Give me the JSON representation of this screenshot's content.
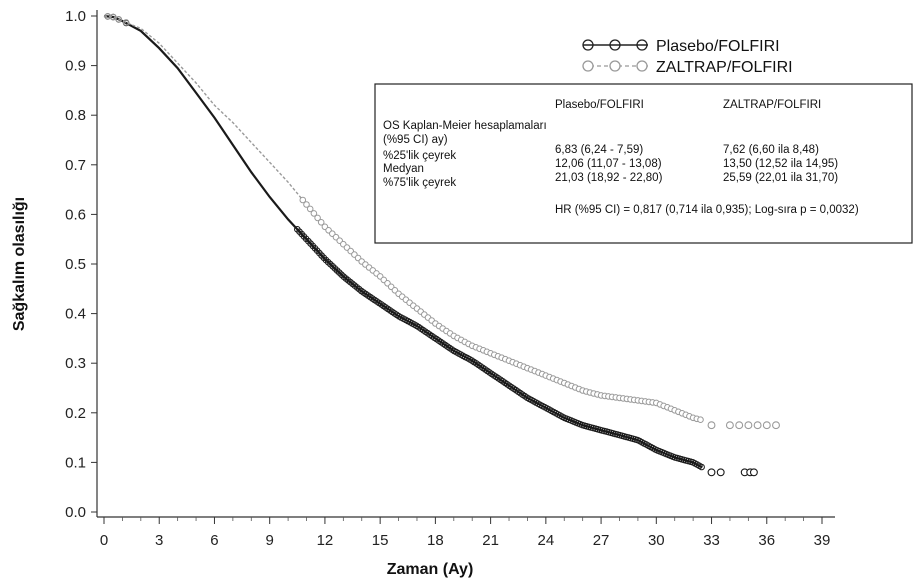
{
  "chart_data": {
    "type": "line",
    "title": "",
    "xlabel": "Zaman (Ay)",
    "ylabel": "Sağkalım olasılığı",
    "xlim": [
      0,
      39
    ],
    "ylim": [
      0,
      1.0
    ],
    "x_ticks": [
      0,
      3,
      6,
      9,
      12,
      15,
      18,
      21,
      24,
      27,
      30,
      33,
      36,
      39
    ],
    "y_ticks": [
      0.0,
      0.1,
      0.2,
      0.3,
      0.4,
      0.5,
      0.6,
      0.7,
      0.8,
      0.9,
      1.0
    ],
    "x_tick_labels": [
      "0",
      "3",
      "6",
      "9",
      "12",
      "15",
      "18",
      "21",
      "24",
      "27",
      "30",
      "33",
      "36",
      "39"
    ],
    "y_tick_labels": [
      "0.0",
      "0.1",
      "0.2",
      "0.3",
      "0.4",
      "0.5",
      "0.6",
      "0.7",
      "0.8",
      "0.9",
      "1.0"
    ],
    "grid": false,
    "legend_position": "top-right",
    "series": [
      {
        "name": "Plasebo/FOLFIRI",
        "color": "#1a1a1a",
        "style": "solid",
        "x": [
          0,
          0.5,
          1,
          2,
          3,
          4,
          5,
          6,
          7,
          8,
          9,
          10,
          11,
          12,
          13,
          14,
          15,
          16,
          17,
          18,
          19,
          20,
          21,
          22,
          23,
          24,
          25,
          26,
          27,
          28,
          29,
          30,
          31,
          32,
          32.5
        ],
        "y": [
          1.0,
          0.998,
          0.99,
          0.97,
          0.935,
          0.895,
          0.845,
          0.795,
          0.74,
          0.685,
          0.635,
          0.59,
          0.55,
          0.51,
          0.475,
          0.445,
          0.42,
          0.395,
          0.375,
          0.35,
          0.325,
          0.305,
          0.28,
          0.255,
          0.23,
          0.21,
          0.19,
          0.175,
          0.165,
          0.155,
          0.145,
          0.125,
          0.11,
          0.1,
          0.09
        ],
        "censored_tail_x": [
          33,
          33.5,
          34.8,
          35.1,
          35.3
        ],
        "censored_tail_y": [
          0.08,
          0.08,
          0.08,
          0.08,
          0.08
        ]
      },
      {
        "name": "ZALTRAP/FOLFIRI",
        "color": "#9a9a9a",
        "style": "dashed",
        "x": [
          0,
          0.5,
          1,
          2,
          3,
          4,
          5,
          6,
          7,
          8,
          9,
          10,
          11,
          12,
          13,
          14,
          15,
          16,
          17,
          18,
          19,
          20,
          21,
          22,
          23,
          24,
          25,
          26,
          27,
          28,
          29,
          30,
          31,
          32,
          32.5
        ],
        "y": [
          1.0,
          0.998,
          0.99,
          0.975,
          0.945,
          0.905,
          0.865,
          0.82,
          0.785,
          0.745,
          0.705,
          0.665,
          0.62,
          0.575,
          0.54,
          0.505,
          0.475,
          0.44,
          0.41,
          0.38,
          0.355,
          0.335,
          0.32,
          0.305,
          0.29,
          0.275,
          0.26,
          0.245,
          0.235,
          0.23,
          0.225,
          0.22,
          0.205,
          0.19,
          0.185
        ],
        "censored_tail_x": [
          33,
          34,
          34.5,
          35,
          35.5,
          36,
          36.5
        ],
        "censored_tail_y": [
          0.175,
          0.175,
          0.175,
          0.175,
          0.175,
          0.175,
          0.175
        ]
      }
    ],
    "table": {
      "col_headers": [
        "Plasebo/FOLFIRI",
        "ZALTRAP/FOLFIRI"
      ],
      "section_label_1": "OS Kaplan-Meier hesaplamaları",
      "section_label_2": "(%95 CI) ay)",
      "rows": [
        {
          "label": "%25'lik çeyrek",
          "values": [
            "6,83 (6,24 - 7,59)",
            "7,62 (6,60 ila 8,48)"
          ]
        },
        {
          "label": "Medyan",
          "values": [
            "12,06 (11,07 - 13,08)",
            "13,50 (12,52 ila 14,95)"
          ]
        },
        {
          "label": "%75'lik çeyrek",
          "values": [
            "21,03 (18,92 - 22,80)",
            "25,59 (22,01 ila 31,70)"
          ]
        }
      ],
      "hr_text": "HR (%95 CI) = 0,817 (0,714 ila 0,935); Log-sıra p = 0,0032)"
    }
  }
}
